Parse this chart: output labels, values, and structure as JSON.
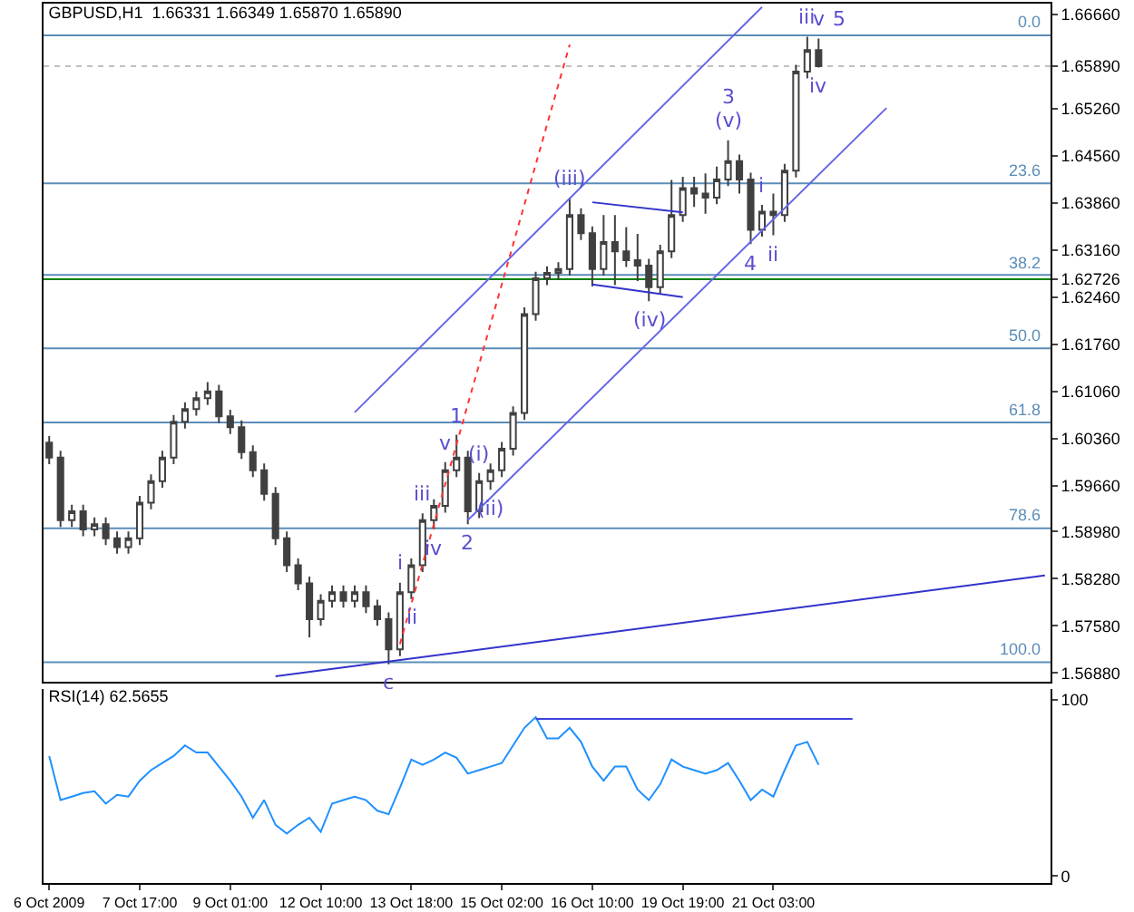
{
  "chart_data": [
    {
      "type": "candlestick",
      "title": "GBPUSD,H1  1.66331 1.66349 1.65870 1.65890",
      "color": "#404040",
      "categories": [
        null,
        null,
        null,
        null,
        null,
        null,
        null,
        null,
        null,
        null,
        null,
        null,
        null,
        null,
        null,
        null,
        null,
        null,
        null,
        null,
        null,
        null,
        null,
        null,
        null,
        null,
        null,
        null,
        null,
        null,
        null,
        null,
        null,
        null,
        null,
        null,
        null,
        null,
        null,
        null,
        null,
        null,
        null,
        null,
        null,
        null,
        null,
        null,
        null,
        null,
        null,
        null,
        null,
        null,
        null,
        null,
        null,
        null,
        null,
        null,
        null,
        null,
        null,
        null,
        null,
        null,
        null,
        null,
        null,
        null,
        null,
        null,
        null,
        null,
        null,
        null,
        null,
        null,
        null,
        null,
        null,
        null,
        null,
        null,
        null,
        null,
        null,
        null,
        null
      ],
      "ohlc": [
        [
          1.603,
          1.604,
          1.5998,
          1.6008
        ],
        [
          1.6008,
          1.6018,
          1.5905,
          1.5915
        ],
        [
          1.5915,
          1.5938,
          1.5905,
          1.5928
        ],
        [
          1.5928,
          1.5938,
          1.5891,
          1.5901
        ],
        [
          1.5901,
          1.5919,
          1.5891,
          1.5909
        ],
        [
          1.5909,
          1.5919,
          1.5878,
          1.5888
        ],
        [
          1.5888,
          1.5898,
          1.5865,
          1.5875
        ],
        [
          1.5875,
          1.5898,
          1.5865,
          1.5888
        ],
        [
          1.5888,
          1.5951,
          1.5878,
          1.5941
        ],
        [
          1.5941,
          1.5983,
          1.5931,
          1.5973
        ],
        [
          1.5973,
          1.6018,
          1.5963,
          1.6008
        ],
        [
          1.6008,
          1.6071,
          1.5998,
          1.6061
        ],
        [
          1.6061,
          1.609,
          1.6051,
          1.608
        ],
        [
          1.608,
          1.6106,
          1.607,
          1.6096
        ],
        [
          1.6096,
          1.612,
          1.6086,
          1.6106
        ],
        [
          1.6106,
          1.6116,
          1.6059,
          1.6069
        ],
        [
          1.6069,
          1.6079,
          1.6043,
          1.6053
        ],
        [
          1.6053,
          1.6063,
          1.6006,
          1.6016
        ],
        [
          1.6016,
          1.6026,
          1.5979,
          1.5989
        ],
        [
          1.5989,
          1.5999,
          1.5944,
          1.5954
        ],
        [
          1.5954,
          1.5964,
          1.5878,
          1.5888
        ],
        [
          1.5888,
          1.5898,
          1.5838,
          1.5848
        ],
        [
          1.5848,
          1.5858,
          1.5811,
          1.5821
        ],
        [
          1.5821,
          1.5831,
          1.5741,
          1.5768
        ],
        [
          1.5768,
          1.5805,
          1.5758,
          1.5795
        ],
        [
          1.5795,
          1.5818,
          1.5785,
          1.5808
        ],
        [
          1.5808,
          1.5818,
          1.5785,
          1.5795
        ],
        [
          1.5795,
          1.5818,
          1.5785,
          1.5808
        ],
        [
          1.5808,
          1.5818,
          1.5777,
          1.5787
        ],
        [
          1.5787,
          1.5797,
          1.5758,
          1.5768
        ],
        [
          1.5768,
          1.5778,
          1.5701,
          1.5723
        ],
        [
          1.5723,
          1.5822,
          1.5713,
          1.5808
        ],
        [
          1.5808,
          1.5858,
          1.5798,
          1.5848
        ],
        [
          1.5848,
          1.5925,
          1.5838,
          1.5915
        ],
        [
          1.5915,
          1.5946,
          1.5902,
          1.5936
        ],
        [
          1.5936,
          1.6001,
          1.5926,
          1.5989
        ],
        [
          1.5989,
          1.6042,
          1.5979,
          1.6008
        ],
        [
          1.6008,
          1.6018,
          1.5909,
          1.5928
        ],
        [
          1.5928,
          1.5985,
          1.5918,
          1.5973
        ],
        [
          1.5973,
          1.5999,
          1.596,
          1.5989
        ],
        [
          1.5989,
          1.6031,
          1.5979,
          1.6021
        ],
        [
          1.6021,
          1.6084,
          1.6011,
          1.6074
        ],
        [
          1.6074,
          1.6231,
          1.6064,
          1.6221
        ],
        [
          1.6221,
          1.6284,
          1.6211,
          1.6274
        ],
        [
          1.6274,
          1.6292,
          1.6264,
          1.6282
        ],
        [
          1.6282,
          1.6298,
          1.6272,
          1.6288
        ],
        [
          1.6288,
          1.6394,
          1.6278,
          1.6368
        ],
        [
          1.6368,
          1.6378,
          1.6331,
          1.6341
        ],
        [
          1.6341,
          1.6351,
          1.6262,
          1.6288
        ],
        [
          1.6288,
          1.6368,
          1.6278,
          1.6328
        ],
        [
          1.6328,
          1.6368,
          1.6264,
          1.6314
        ],
        [
          1.6314,
          1.635,
          1.6291,
          1.6301
        ],
        [
          1.6301,
          1.634,
          1.627,
          1.6293
        ],
        [
          1.6293,
          1.6303,
          1.624,
          1.6261
        ],
        [
          1.6261,
          1.6324,
          1.6251,
          1.6314
        ],
        [
          1.6314,
          1.642,
          1.6304,
          1.6368
        ],
        [
          1.6368,
          1.6425,
          1.6358,
          1.6408
        ],
        [
          1.6408,
          1.6425,
          1.638,
          1.64
        ],
        [
          1.64,
          1.643,
          1.637,
          1.6394
        ],
        [
          1.6394,
          1.644,
          1.6384,
          1.6421
        ],
        [
          1.6421,
          1.6479,
          1.6411,
          1.6448
        ],
        [
          1.6448,
          1.6458,
          1.64,
          1.6421
        ],
        [
          1.6421,
          1.6431,
          1.6325,
          1.6346
        ],
        [
          1.6346,
          1.6383,
          1.6336,
          1.6373
        ],
        [
          1.6373,
          1.64,
          1.6338,
          1.6368
        ],
        [
          1.6368,
          1.6444,
          1.6358,
          1.6434
        ],
        [
          1.6434,
          1.6591,
          1.6424,
          1.6581
        ],
        [
          1.6581,
          1.6633,
          1.6571,
          1.6613
        ],
        [
          1.6613,
          1.663,
          1.6587,
          1.6589
        ],
        null,
        null,
        null,
        null,
        null,
        null,
        null,
        null,
        null,
        null,
        null,
        null,
        null,
        null,
        null,
        null,
        null,
        null,
        null,
        null
      ],
      "series": [
        {
          "type": "line",
          "color": "#6666e6",
          "values": [
            null,
            null,
            null,
            null,
            null,
            null,
            null,
            null,
            null,
            null,
            null,
            null,
            null,
            null,
            null,
            null,
            null,
            null,
            null,
            null,
            null,
            null,
            null,
            null,
            null,
            null,
            null,
            1.6075,
            null,
            null,
            null,
            null,
            null,
            null,
            null,
            null,
            null,
            null,
            null,
            null,
            null,
            null,
            null,
            null,
            null,
            null,
            null,
            null,
            null,
            null,
            null,
            null,
            null,
            null,
            null,
            null,
            null,
            null,
            null,
            null,
            null,
            null,
            null,
            1.6677,
            null,
            null,
            null,
            null,
            null,
            null,
            null,
            null,
            null,
            null,
            null,
            null,
            null,
            null,
            null,
            null,
            null,
            null,
            null,
            null,
            null,
            null,
            null,
            null,
            null
          ]
        },
        {
          "type": "line",
          "color": "#6666e6",
          "values": [
            null,
            null,
            null,
            null,
            null,
            null,
            null,
            null,
            null,
            null,
            null,
            null,
            null,
            null,
            null,
            null,
            null,
            null,
            null,
            null,
            null,
            null,
            null,
            null,
            null,
            null,
            null,
            null,
            null,
            null,
            null,
            null,
            null,
            null,
            null,
            null,
            null,
            1.5915,
            null,
            null,
            null,
            null,
            null,
            null,
            null,
            null,
            null,
            null,
            null,
            null,
            null,
            null,
            null,
            null,
            null,
            null,
            null,
            null,
            null,
            null,
            null,
            null,
            null,
            null,
            null,
            null,
            null,
            null,
            null,
            null,
            null,
            null,
            null,
            null,
            1.6527,
            null,
            null,
            null,
            null,
            null,
            null,
            null,
            null,
            null,
            null,
            null,
            null,
            null,
            null
          ]
        },
        {
          "type": "line",
          "color": "#3333cc",
          "values": [
            null,
            null,
            null,
            null,
            null,
            null,
            null,
            null,
            null,
            null,
            null,
            null,
            null,
            null,
            null,
            null,
            null,
            null,
            null,
            null,
            1.5683,
            null,
            null,
            null,
            null,
            null,
            null,
            null,
            null,
            null,
            null,
            null,
            null,
            null,
            null,
            null,
            null,
            null,
            null,
            null,
            null,
            null,
            null,
            null,
            null,
            null,
            null,
            null,
            null,
            null,
            null,
            null,
            null,
            null,
            null,
            null,
            null,
            null,
            null,
            null,
            null,
            null,
            null,
            null,
            null,
            null,
            null,
            null,
            null,
            null,
            null,
            null,
            null,
            null,
            null,
            null,
            null,
            null,
            null,
            null,
            null,
            null,
            null,
            null,
            null,
            null,
            null,
            null,
            1.5833
          ]
        },
        {
          "type": "line",
          "color": "#ff3333",
          "line_style": "dotted",
          "values": [
            null,
            null,
            null,
            null,
            null,
            null,
            null,
            null,
            null,
            null,
            null,
            null,
            null,
            null,
            null,
            null,
            null,
            null,
            null,
            null,
            null,
            null,
            null,
            null,
            null,
            null,
            null,
            null,
            null,
            null,
            null,
            1.5731,
            null,
            null,
            null,
            null,
            null,
            null,
            null,
            null,
            null,
            null,
            null,
            null,
            null,
            null,
            1.6621,
            null,
            null,
            null,
            null,
            null,
            null,
            null,
            null,
            null,
            null,
            null,
            null,
            null,
            null,
            null,
            null,
            null,
            null,
            null,
            null,
            null,
            null,
            null,
            null,
            null,
            null,
            null,
            null,
            null,
            null,
            null,
            null,
            null,
            null,
            null,
            null,
            null,
            null,
            null,
            null,
            null,
            null
          ]
        },
        {
          "type": "line",
          "color": "#3333cc",
          "values": [
            null,
            null,
            null,
            null,
            null,
            null,
            null,
            null,
            null,
            null,
            null,
            null,
            null,
            null,
            null,
            null,
            null,
            null,
            null,
            null,
            null,
            null,
            null,
            null,
            null,
            null,
            null,
            null,
            null,
            null,
            null,
            null,
            null,
            null,
            null,
            null,
            null,
            null,
            null,
            null,
            null,
            null,
            null,
            null,
            null,
            null,
            null,
            null,
            1.6387,
            null,
            null,
            null,
            null,
            null,
            null,
            null,
            1.6372,
            null,
            null,
            null,
            null,
            null,
            null,
            null,
            null,
            null,
            null,
            null,
            null,
            null,
            null,
            null,
            null,
            null,
            null,
            null,
            null,
            null,
            null,
            null,
            null,
            null,
            null,
            null,
            null,
            null,
            null,
            null,
            null
          ]
        },
        {
          "type": "line",
          "color": "#3333cc",
          "values": [
            null,
            null,
            null,
            null,
            null,
            null,
            null,
            null,
            null,
            null,
            null,
            null,
            null,
            null,
            null,
            null,
            null,
            null,
            null,
            null,
            null,
            null,
            null,
            null,
            null,
            null,
            null,
            null,
            null,
            null,
            null,
            null,
            null,
            null,
            null,
            null,
            null,
            null,
            null,
            null,
            null,
            null,
            null,
            null,
            null,
            null,
            null,
            null,
            1.6265,
            null,
            null,
            null,
            null,
            null,
            null,
            null,
            1.6246,
            null,
            null,
            null,
            null,
            null,
            null,
            null,
            null,
            null,
            null,
            null,
            null,
            null,
            null,
            null,
            null,
            null,
            null,
            null,
            null,
            null,
            null,
            null,
            null,
            null,
            null,
            null,
            null,
            null,
            null,
            null,
            null
          ]
        }
      ],
      "ylim": [
        1.5675,
        1.6682
      ],
      "yticks": [
        {
          "value": 1.5688,
          "label": "1.56880"
        },
        {
          "value": 1.5758,
          "label": "1.57580"
        },
        {
          "value": 1.5828,
          "label": "1.58280"
        },
        {
          "value": 1.5898,
          "label": "1.58980"
        },
        {
          "value": 1.5966,
          "label": "1.59660"
        },
        {
          "value": 1.6036,
          "label": "1.60360"
        },
        {
          "value": 1.6106,
          "label": "1.61060"
        },
        {
          "value": 1.6176,
          "label": "1.61760"
        },
        {
          "value": 1.6246,
          "label": "1.62460"
        },
        {
          "value": 1.62726,
          "label": "1.62726"
        },
        {
          "value": 1.6316,
          "label": "1.63160"
        },
        {
          "value": 1.6386,
          "label": "1.63860"
        },
        {
          "value": 1.6456,
          "label": "1.64560"
        },
        {
          "value": 1.6526,
          "label": "1.65260"
        },
        {
          "value": 1.6589,
          "label": "1.65890"
        },
        {
          "value": 1.6666,
          "label": "1.66660"
        }
      ],
      "ref_lines": [
        {
          "axis": "y",
          "value": 1.6635,
          "color": "#5b8db8"
        },
        {
          "axis": "y",
          "value": 1.6415,
          "color": "#5b8db8"
        },
        {
          "axis": "y",
          "value": 1.6279,
          "color": "#5b8db8"
        },
        {
          "axis": "y",
          "value": 1.617,
          "color": "#5b8db8"
        },
        {
          "axis": "y",
          "value": 1.606,
          "color": "#5b8db8"
        },
        {
          "axis": "y",
          "value": 1.5903,
          "color": "#5b8db8"
        },
        {
          "axis": "y",
          "value": 1.5704,
          "color": "#5b8db8"
        },
        {
          "axis": "y",
          "value": 1.62726,
          "color": "#008000"
        },
        {
          "axis": "y",
          "value": 1.6589,
          "color": "#c0c0c0",
          "line_style": "dotted"
        }
      ],
      "annotations": [
        {
          "text": "0.0",
          "y": 1.6635
        },
        {
          "text": "23.6",
          "y": 1.6415
        },
        {
          "text": "38.2",
          "y": 1.6279
        },
        {
          "text": "50.0",
          "y": 1.617
        },
        {
          "text": "61.8",
          "y": 1.606
        },
        {
          "text": "78.6",
          "y": 1.5903
        },
        {
          "text": "100.0",
          "y": 1.5704
        },
        {
          "text": "c",
          "y": 1.5701
        },
        {
          "text": "i",
          "y": 1.5822
        },
        {
          "text": "ii",
          "y": 1.5798
        },
        {
          "text": "iii",
          "y": 1.5925
        },
        {
          "text": "iv",
          "y": 1.5902
        },
        {
          "text": "v",
          "y": 1.6001
        },
        {
          "text": "1",
          "y": 1.6042
        },
        {
          "text": "2",
          "y": 1.5909
        },
        {
          "text": "(i)",
          "y": 1.5985
        },
        {
          "text": "(ii)",
          "y": 1.596
        },
        {
          "text": "(iii)",
          "y": 1.6394
        },
        {
          "text": "(iv)",
          "y": 1.624
        },
        {
          "text": "(v)",
          "y": 1.6479
        },
        {
          "text": "3",
          "y": 1.6479
        },
        {
          "text": "4",
          "y": 1.6325
        },
        {
          "text": "i",
          "y": 1.6383
        },
        {
          "text": "ii",
          "y": 1.6338
        },
        {
          "text": "iii",
          "y": 1.6633
        },
        {
          "text": "iv",
          "y": 1.6587
        },
        {
          "text": "v",
          "y": 1.663
        },
        {
          "text": "5",
          "y": 1.663
        }
      ]
    },
    {
      "type": "line",
      "title": "RSI(14) 62.5655",
      "categories": [
        "6 Oct 2009",
        null,
        null,
        null,
        null,
        null,
        null,
        null,
        "7 Oct 17:00",
        null,
        null,
        null,
        null,
        null,
        null,
        null,
        "9 Oct 01:00",
        null,
        null,
        null,
        null,
        null,
        null,
        null,
        "12 Oct 10:00",
        null,
        null,
        null,
        null,
        null,
        null,
        null,
        "13 Oct 18:00",
        null,
        null,
        null,
        null,
        null,
        null,
        null,
        "15 Oct 02:00",
        null,
        null,
        null,
        null,
        null,
        null,
        null,
        "16 Oct 10:00",
        null,
        null,
        null,
        null,
        null,
        null,
        null,
        "19 Oct 19:00",
        null,
        null,
        null,
        null,
        null,
        null,
        null,
        "21 Oct 03:00",
        null,
        null,
        null,
        null,
        null,
        null,
        null,
        null,
        null,
        null,
        null,
        null,
        null,
        null,
        null,
        null,
        null,
        null,
        null,
        null,
        null,
        null,
        null,
        null
      ],
      "series": [
        {
          "color": "#1e90ff",
          "values": [
            68,
            43,
            45,
            47,
            48,
            41,
            46,
            45,
            54,
            60,
            64,
            68,
            74,
            70,
            70,
            62,
            54,
            45,
            33,
            43,
            29,
            24,
            29,
            33,
            25,
            41,
            43,
            45,
            43,
            37,
            35,
            50,
            66,
            63,
            66,
            70,
            67,
            58,
            60,
            62,
            64,
            74,
            84,
            90,
            78,
            78,
            84,
            76,
            62,
            54,
            62,
            62,
            49,
            43,
            52,
            66,
            62,
            60,
            58,
            60,
            64,
            54,
            43,
            49,
            45,
            60,
            74,
            76,
            63,
            null,
            null,
            null,
            null,
            null,
            null,
            null,
            null,
            null,
            null,
            null,
            null,
            null,
            null,
            null,
            null,
            null,
            null,
            null,
            null
          ]
        },
        {
          "color": "#4040e0",
          "values": [
            null,
            null,
            null,
            null,
            null,
            null,
            null,
            null,
            null,
            null,
            null,
            null,
            null,
            null,
            null,
            null,
            null,
            null,
            null,
            null,
            null,
            null,
            null,
            null,
            null,
            null,
            null,
            null,
            null,
            null,
            null,
            null,
            null,
            null,
            null,
            null,
            null,
            null,
            null,
            null,
            null,
            null,
            null,
            89,
            null,
            null,
            null,
            null,
            null,
            null,
            null,
            null,
            null,
            null,
            null,
            null,
            null,
            null,
            null,
            null,
            null,
            null,
            null,
            null,
            null,
            null,
            null,
            null,
            null,
            null,
            null,
            89,
            null,
            null,
            null,
            null,
            null,
            null,
            null,
            null,
            null,
            null,
            null,
            null,
            null,
            null,
            null,
            null,
            null
          ]
        }
      ],
      "ylim": [
        -4,
        106
      ],
      "yticks": [
        0,
        100
      ]
    }
  ]
}
